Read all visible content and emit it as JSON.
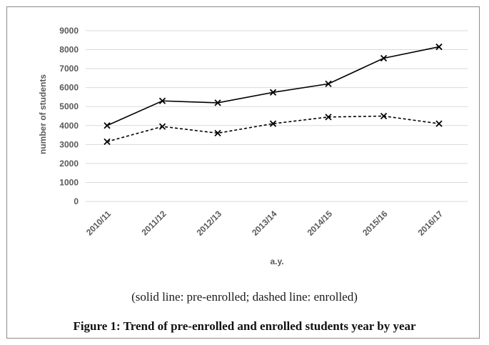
{
  "chart_data": {
    "type": "line",
    "categories": [
      "2010/11",
      "2011/12",
      "2012/13",
      "2013/14",
      "2014/15",
      "2015/16",
      "2016/17"
    ],
    "series": [
      {
        "values": [
          4000,
          5300,
          5200,
          5750,
          6200,
          7550,
          8150
        ],
        "line_style": "solid",
        "color": "#000000"
      },
      {
        "values": [
          3150,
          3950,
          3600,
          4100,
          4450,
          4500,
          4100
        ],
        "line_style": "dashed",
        "color": "#000000"
      }
    ],
    "marker": "x",
    "xlabel": "a.y.",
    "ylabel": "number of students",
    "ylim": [
      0,
      9000
    ],
    "yticks": [
      0,
      1000,
      2000,
      3000,
      4000,
      5000,
      6000,
      7000,
      8000,
      9000
    ],
    "grid": true,
    "legend": "none"
  },
  "caption": {
    "subtitle": "(solid line: pre-enrolled; dashed line: enrolled)",
    "title": "Figure 1: Trend of pre-enrolled and enrolled students year by year"
  },
  "colors": {
    "gridline": "#d9d9d9",
    "tick_text": "#595959",
    "frame": "#8a8a8a"
  }
}
